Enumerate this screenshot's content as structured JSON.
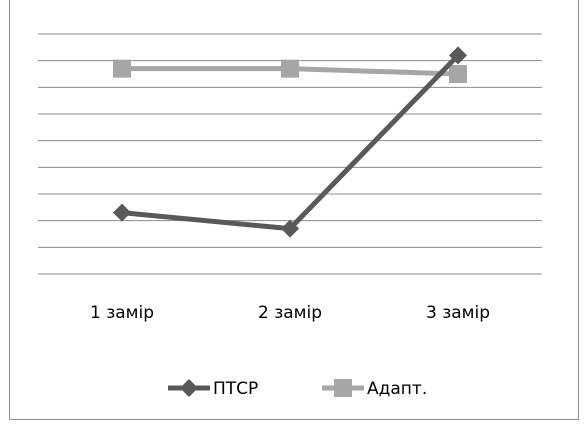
{
  "chart_data": {
    "type": "line",
    "categories": [
      "1 замір",
      "2 замір",
      "3 замір"
    ],
    "series": [
      {
        "name": "ПТСР",
        "values": [
          1.3,
          0.7,
          7.2
        ],
        "color": "#595959",
        "marker": "diamond"
      },
      {
        "name": "Адапт.",
        "values": [
          6.7,
          6.7,
          6.5
        ],
        "color": "#a6a6a6",
        "marker": "square"
      }
    ],
    "ylim": [
      -1,
      8
    ],
    "grid": true,
    "y_tick_labels_shown": false,
    "legend": "bottom"
  }
}
